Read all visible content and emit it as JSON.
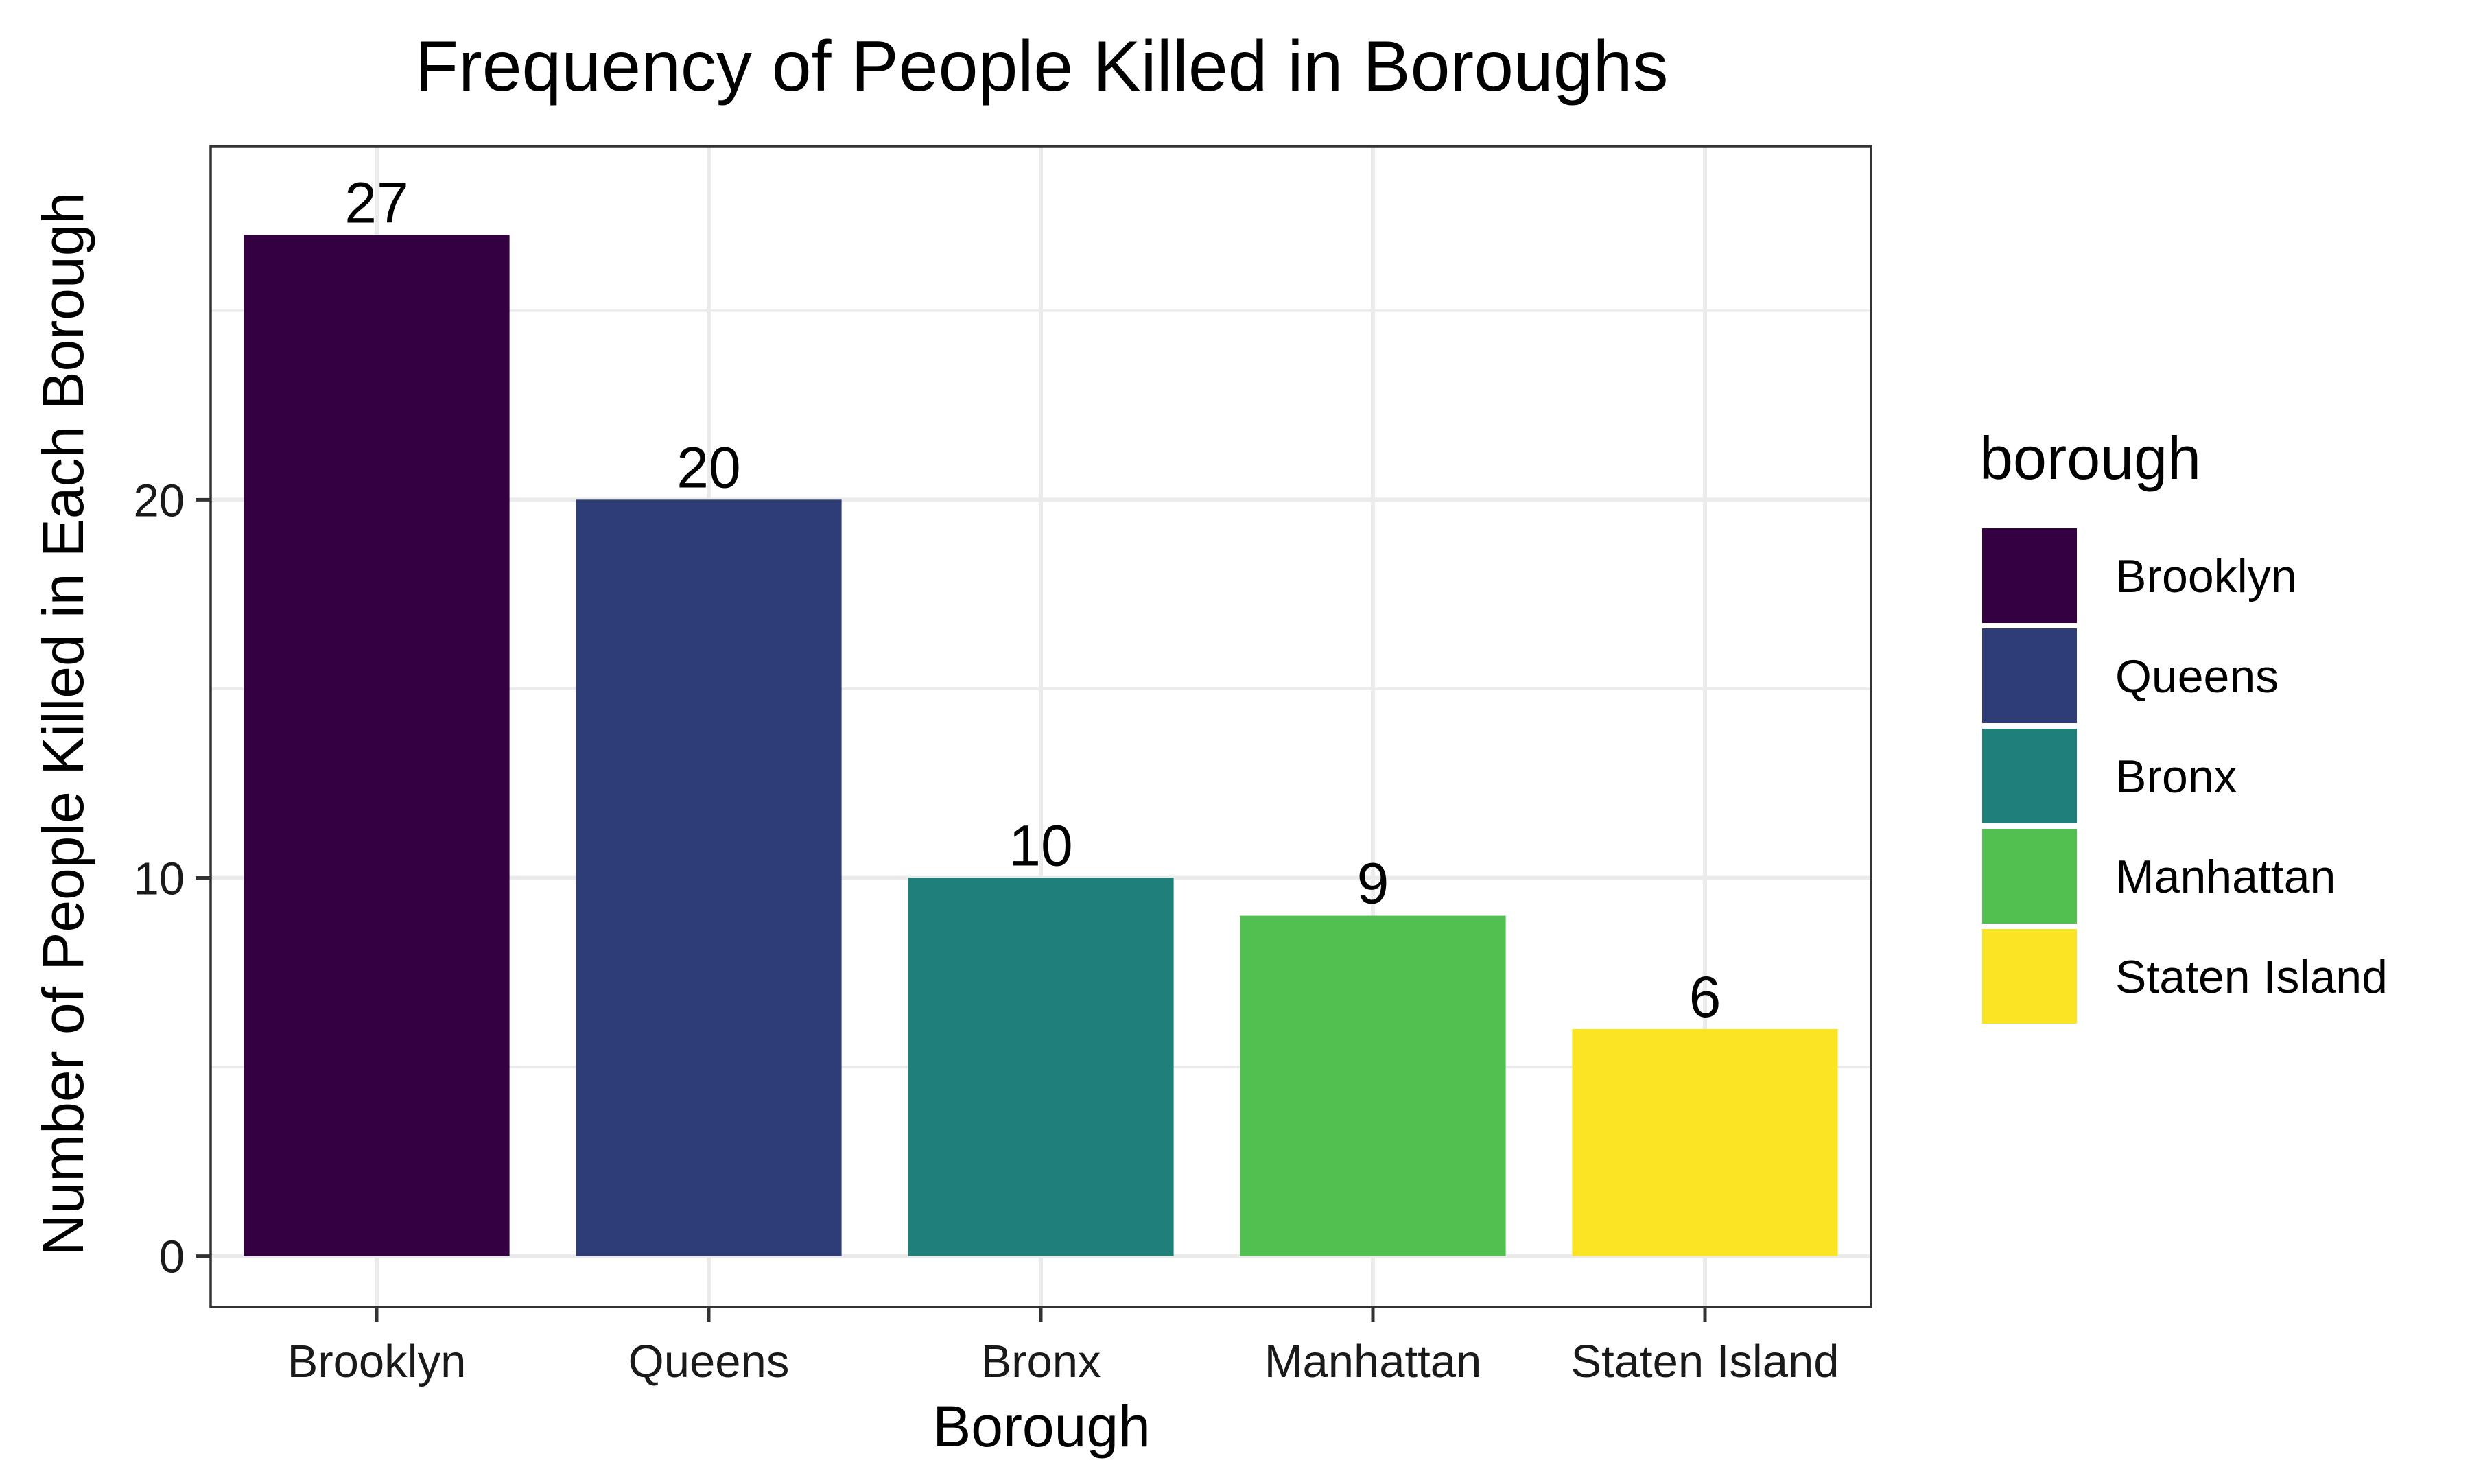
{
  "chart_data": {
    "type": "bar",
    "title": "Frequency of People Killed in Boroughs",
    "xlabel": "Borough",
    "ylabel": "Number of People Killed in Each Borough",
    "categories": [
      "Brooklyn",
      "Queens",
      "Bronx",
      "Manhattan",
      "Staten Island"
    ],
    "values": [
      27,
      20,
      10,
      9,
      6
    ],
    "colors": [
      "#340042",
      "#2f3d76",
      "#1f7f79",
      "#52bf51",
      "#fbe423"
    ],
    "ylim": [
      -1.35,
      29.35
    ],
    "yticks": [
      0,
      10,
      20
    ],
    "grid": true,
    "legend": {
      "title": "borough",
      "position": "right"
    }
  }
}
